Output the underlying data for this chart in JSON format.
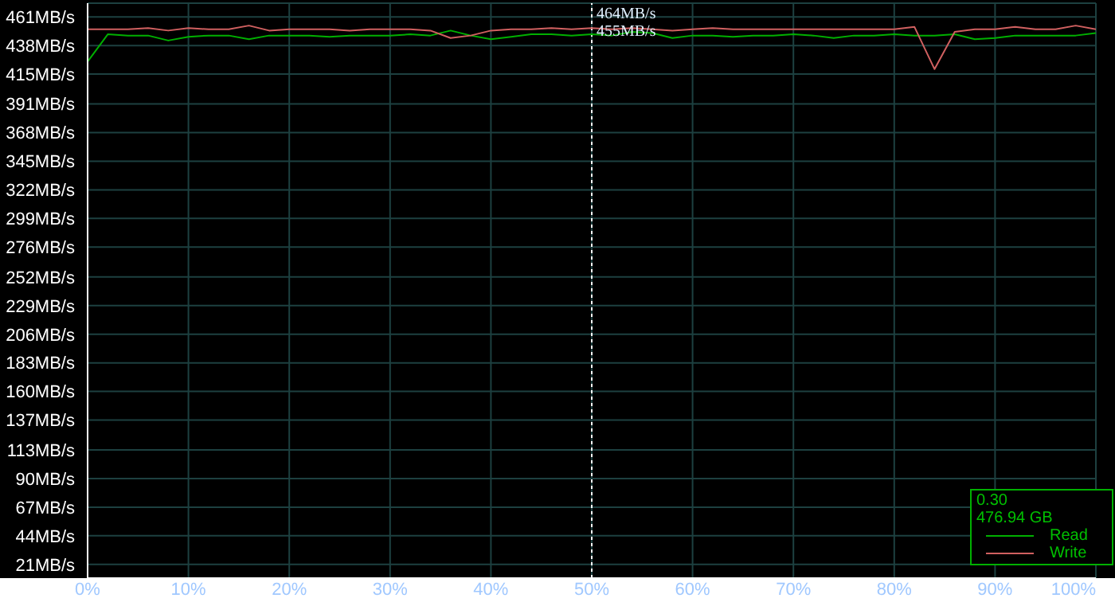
{
  "chart_data": {
    "type": "line",
    "x": [
      0,
      2,
      4,
      6,
      8,
      10,
      12,
      14,
      16,
      18,
      20,
      22,
      24,
      26,
      28,
      30,
      32,
      34,
      36,
      38,
      40,
      42,
      44,
      46,
      48,
      50,
      52,
      54,
      56,
      58,
      60,
      62,
      64,
      66,
      68,
      70,
      72,
      74,
      76,
      78,
      80,
      82,
      84,
      86,
      88,
      90,
      92,
      94,
      96,
      98,
      100
    ],
    "series": [
      {
        "name": "Read",
        "color": "#00b000",
        "values": [
          425,
          447,
          446,
          446,
          442,
          445,
          446,
          446,
          443,
          446,
          446,
          446,
          445,
          446,
          446,
          446,
          447,
          446,
          450,
          446,
          443,
          445,
          447,
          447,
          446,
          447,
          446,
          449,
          448,
          444,
          446,
          446,
          445,
          446,
          446,
          447,
          446,
          444,
          446,
          446,
          447,
          446,
          446,
          447,
          443,
          444,
          446,
          446,
          446,
          446,
          448
        ]
      },
      {
        "name": "Write",
        "color": "#d06060",
        "values": [
          451,
          451,
          451,
          452,
          450,
          452,
          451,
          451,
          454,
          450,
          451,
          451,
          451,
          450,
          451,
          451,
          451,
          450,
          444,
          446,
          450,
          451,
          451,
          452,
          451,
          452,
          451,
          452,
          451,
          450,
          451,
          452,
          451,
          451,
          451,
          451,
          451,
          451,
          451,
          451,
          451,
          453,
          419,
          449,
          451,
          451,
          453,
          451,
          451,
          454,
          451
        ]
      }
    ],
    "xlim": [
      0,
      100
    ],
    "xticks": [
      {
        "value": 0,
        "label": "0%"
      },
      {
        "value": 10,
        "label": "10%"
      },
      {
        "value": 20,
        "label": "20%"
      },
      {
        "value": 30,
        "label": "30%"
      },
      {
        "value": 40,
        "label": "40%"
      },
      {
        "value": 50,
        "label": "50%"
      },
      {
        "value": 60,
        "label": "60%"
      },
      {
        "value": 70,
        "label": "70%"
      },
      {
        "value": 80,
        "label": "80%"
      },
      {
        "value": 90,
        "label": "90%"
      },
      {
        "value": 100,
        "label": "100%"
      }
    ],
    "ylim": [
      10,
      472
    ],
    "yticks": [
      {
        "value": 21,
        "label": "21MB/s"
      },
      {
        "value": 44,
        "label": "44MB/s"
      },
      {
        "value": 67,
        "label": "67MB/s"
      },
      {
        "value": 90,
        "label": "90MB/s"
      },
      {
        "value": 113,
        "label": "113MB/s"
      },
      {
        "value": 137,
        "label": "137MB/s"
      },
      {
        "value": 160,
        "label": "160MB/s"
      },
      {
        "value": 183,
        "label": "183MB/s"
      },
      {
        "value": 206,
        "label": "206MB/s"
      },
      {
        "value": 229,
        "label": "229MB/s"
      },
      {
        "value": 252,
        "label": "252MB/s"
      },
      {
        "value": 276,
        "label": "276MB/s"
      },
      {
        "value": 299,
        "label": "299MB/s"
      },
      {
        "value": 322,
        "label": "322MB/s"
      },
      {
        "value": 345,
        "label": "345MB/s"
      },
      {
        "value": 368,
        "label": "368MB/s"
      },
      {
        "value": 391,
        "label": "391MB/s"
      },
      {
        "value": 415,
        "label": "415MB/s"
      },
      {
        "value": 438,
        "label": "438MB/s"
      },
      {
        "value": 461,
        "label": "461MB/s"
      }
    ],
    "grid": true,
    "legend": "bottom right",
    "marker": "none",
    "line_style": "solid",
    "ref_lines": [
      {
        "axis": "x",
        "value": 50,
        "color": "#ffffff",
        "line_style": "dotted"
      }
    ],
    "annotations": [
      {
        "text": "464MB/s",
        "x": 50,
        "y": 464
      },
      {
        "text": "455MB/s",
        "x": 50,
        "y": 455
      },
      "0.30",
      "476.94 GB"
    ]
  }
}
